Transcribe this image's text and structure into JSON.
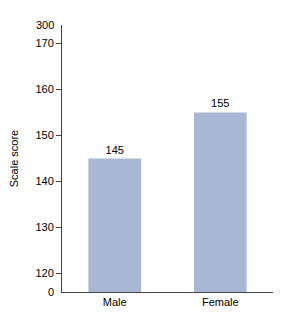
{
  "chart_data": {
    "type": "bar",
    "ylabel": "Scale score",
    "categories": [
      "Male",
      "Female"
    ],
    "values": [
      145,
      155
    ],
    "color": "#a8b8d4",
    "ylim": [
      116,
      174
    ],
    "yticks": [
      120,
      130,
      140,
      150,
      160,
      170
    ],
    "grid": false,
    "data_labels": true,
    "annotations": [
      "0",
      "300"
    ]
  }
}
